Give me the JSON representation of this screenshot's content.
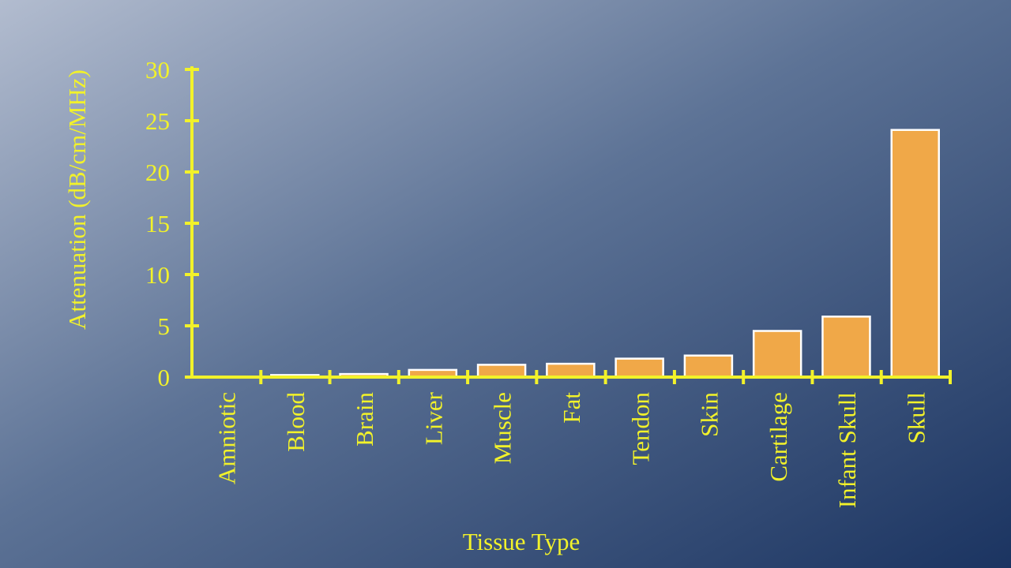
{
  "chart_data": {
    "type": "bar",
    "x_label": "Tissue Type",
    "y_label": "Attenuation (dB/cm/MHz)",
    "categories": [
      "Amniotic",
      "Blood",
      "Brain",
      "Liver",
      "Muscle",
      "Fat",
      "Tendon",
      "Skin",
      "Cartilage",
      "Infant Skull",
      "Skull"
    ],
    "values": [
      0,
      0.2,
      0.3,
      0.7,
      1.2,
      1.3,
      1.8,
      2.1,
      4.5,
      5.9,
      24.1
    ],
    "color": "#f0a848",
    "ylim": [
      0,
      30
    ],
    "yticks": [
      0,
      5,
      10,
      15,
      20,
      25,
      30
    ]
  }
}
